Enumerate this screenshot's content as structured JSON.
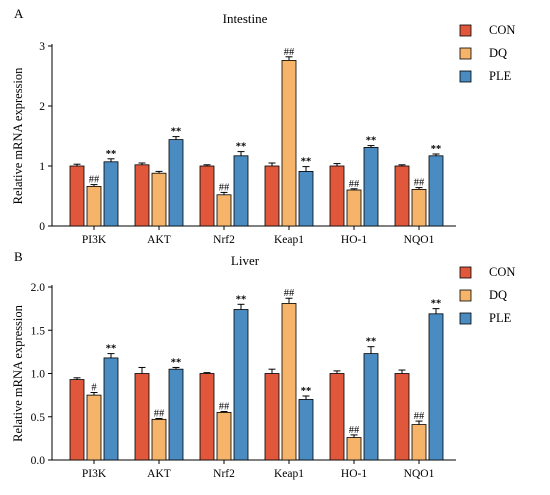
{
  "chart_data": [
    {
      "type": "bar",
      "panel": "A",
      "title": "Intestine",
      "xlabel": "",
      "ylabel": "Relative mRNA expression",
      "ylim": [
        0,
        3
      ],
      "yticks": [
        "0",
        "1",
        "2",
        "3"
      ],
      "ytick_values": [
        0,
        1,
        2,
        3
      ],
      "categories": [
        "PI3K",
        "AKT",
        "Nrf2",
        "Keap1",
        "HO-1",
        "NQO1"
      ],
      "legend_position": "right",
      "series": [
        {
          "name": "CON",
          "color": "#e0573b",
          "values": [
            1.0,
            1.02,
            1.0,
            1.0,
            1.0,
            1.0
          ],
          "errors": [
            0.03,
            0.03,
            0.02,
            0.05,
            0.04,
            0.02
          ],
          "marks": [
            "",
            "",
            "",
            "",
            "",
            ""
          ]
        },
        {
          "name": "DQ",
          "color": "#f5b469",
          "values": [
            0.66,
            0.88,
            0.52,
            2.76,
            0.6,
            0.61
          ],
          "errors": [
            0.03,
            0.03,
            0.04,
            0.06,
            0.02,
            0.03
          ],
          "marks": [
            "##",
            "",
            "##",
            "##",
            "##",
            "##"
          ]
        },
        {
          "name": "PLE",
          "color": "#4a8bc2",
          "values": [
            1.07,
            1.44,
            1.17,
            0.91,
            1.31,
            1.17
          ],
          "errors": [
            0.05,
            0.05,
            0.07,
            0.08,
            0.03,
            0.03
          ],
          "marks": [
            "**",
            "**",
            "**",
            "**",
            "**",
            "**"
          ]
        }
      ]
    },
    {
      "type": "bar",
      "panel": "B",
      "title": "Liver",
      "xlabel": "",
      "ylabel": "Relative mRNA expression",
      "ylim": [
        0,
        2.0
      ],
      "yticks": [
        "0.0",
        "0.5",
        "1.0",
        "1.5",
        "2.0"
      ],
      "ytick_values": [
        0,
        0.5,
        1.0,
        1.5,
        2.0
      ],
      "categories": [
        "PI3K",
        "AKT",
        "Nrf2",
        "Keap1",
        "HO-1",
        "NQO1"
      ],
      "legend_position": "right",
      "series": [
        {
          "name": "CON",
          "color": "#e0573b",
          "values": [
            0.93,
            1.0,
            1.0,
            1.0,
            1.0,
            1.0
          ],
          "errors": [
            0.02,
            0.07,
            0.01,
            0.05,
            0.03,
            0.04
          ],
          "marks": [
            "",
            "",
            "",
            "",
            "",
            ""
          ]
        },
        {
          "name": "DQ",
          "color": "#f5b469",
          "values": [
            0.75,
            0.47,
            0.55,
            1.81,
            0.26,
            0.41
          ],
          "errors": [
            0.03,
            0.01,
            0.01,
            0.06,
            0.03,
            0.04
          ],
          "marks": [
            "#",
            "##",
            "##",
            "##",
            "##",
            "##"
          ]
        },
        {
          "name": "PLE",
          "color": "#4a8bc2",
          "values": [
            1.18,
            1.05,
            1.74,
            0.7,
            1.23,
            1.69
          ],
          "errors": [
            0.05,
            0.02,
            0.06,
            0.04,
            0.08,
            0.06
          ],
          "marks": [
            "**",
            "**",
            "**",
            "**",
            "**",
            "**"
          ]
        }
      ]
    }
  ]
}
